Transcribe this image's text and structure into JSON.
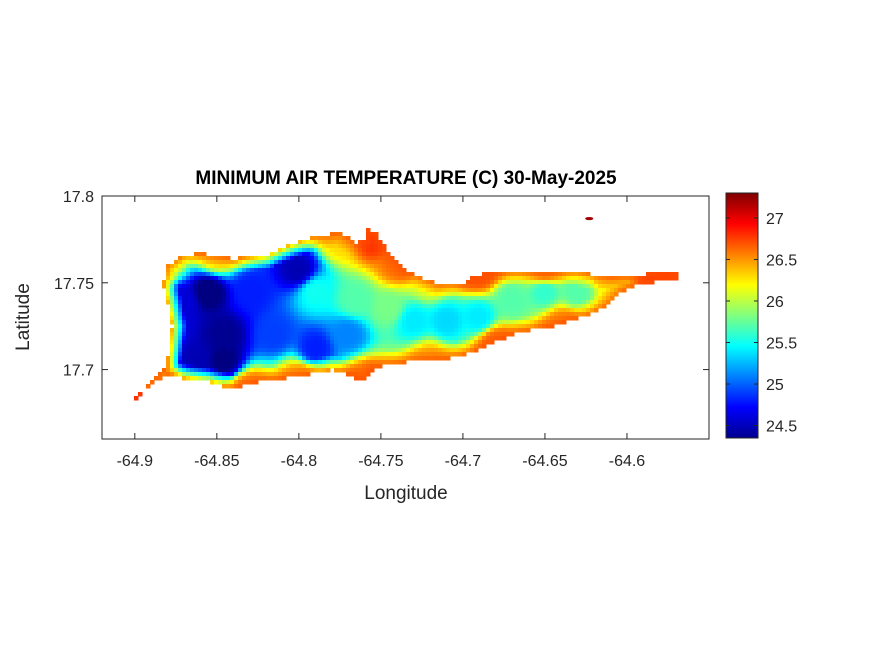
{
  "chart_data": {
    "type": "heatmap",
    "title": "MINIMUM AIR TEMPERATURE (C) 30-May-2025",
    "xlabel": "Longitude",
    "ylabel": "Latitude",
    "xlim": [
      -64.92,
      -64.55
    ],
    "ylim": [
      17.66,
      17.8
    ],
    "xticks": [
      -64.9,
      -64.85,
      -64.8,
      -64.75,
      -64.7,
      -64.65,
      -64.6
    ],
    "xtick_labels": [
      "-64.9",
      "-64.85",
      "-64.8",
      "-64.75",
      "-64.7",
      "-64.65",
      "-64.6"
    ],
    "yticks": [
      17.7,
      17.75,
      17.8
    ],
    "ytick_labels": [
      "17.7",
      "17.75",
      "17.8"
    ],
    "colormap": "jet",
    "colorbar": {
      "range": [
        24.35,
        27.3
      ],
      "ticks": [
        24.5,
        25,
        25.5,
        26,
        26.5,
        27
      ],
      "tick_labels": [
        "24.5",
        "25",
        "25.5",
        "26",
        "26.5",
        "27"
      ]
    },
    "grid": false,
    "island_outline": [
      [
        -64.9,
        17.681
      ],
      [
        -64.895,
        17.688
      ],
      [
        -64.887,
        17.693
      ],
      [
        -64.88,
        17.697
      ],
      [
        -64.87,
        17.695
      ],
      [
        -64.855,
        17.693
      ],
      [
        -64.84,
        17.689
      ],
      [
        -64.825,
        17.693
      ],
      [
        -64.81,
        17.695
      ],
      [
        -64.795,
        17.697
      ],
      [
        -64.78,
        17.7
      ],
      [
        -64.77,
        17.697
      ],
      [
        -64.76,
        17.693
      ],
      [
        -64.755,
        17.7
      ],
      [
        -64.745,
        17.703
      ],
      [
        -64.73,
        17.705
      ],
      [
        -64.71,
        17.706
      ],
      [
        -64.695,
        17.71
      ],
      [
        -64.68,
        17.716
      ],
      [
        -64.665,
        17.722
      ],
      [
        -64.645,
        17.725
      ],
      [
        -64.625,
        17.731
      ],
      [
        -64.612,
        17.737
      ],
      [
        -64.603,
        17.745
      ],
      [
        -64.59,
        17.75
      ],
      [
        -64.575,
        17.751
      ],
      [
        -64.565,
        17.754
      ],
      [
        -64.575,
        17.757
      ],
      [
        -64.59,
        17.755
      ],
      [
        -64.61,
        17.753
      ],
      [
        -64.63,
        17.756
      ],
      [
        -64.66,
        17.757
      ],
      [
        -64.69,
        17.755
      ],
      [
        -64.7,
        17.75
      ],
      [
        -64.715,
        17.749
      ],
      [
        -64.735,
        17.757
      ],
      [
        -64.745,
        17.767
      ],
      [
        -64.752,
        17.778
      ],
      [
        -64.758,
        17.781
      ],
      [
        -64.76,
        17.775
      ],
      [
        -64.765,
        17.773
      ],
      [
        -64.775,
        17.779
      ],
      [
        -64.79,
        17.777
      ],
      [
        -64.805,
        17.772
      ],
      [
        -64.82,
        17.766
      ],
      [
        -64.84,
        17.764
      ],
      [
        -64.858,
        17.767
      ],
      [
        -64.87,
        17.766
      ],
      [
        -64.88,
        17.76
      ],
      [
        -64.883,
        17.75
      ],
      [
        -64.88,
        17.74
      ],
      [
        -64.877,
        17.725
      ],
      [
        -64.879,
        17.712
      ],
      [
        -64.882,
        17.7
      ],
      [
        -64.889,
        17.694
      ],
      [
        -64.897,
        17.686
      ],
      [
        -64.902,
        17.682
      ]
    ],
    "temperature_anchors": [
      {
        "lon": -64.9,
        "lat": 17.681,
        "temp": 27.2
      },
      {
        "lon": -64.888,
        "lat": 17.695,
        "temp": 26.3
      },
      {
        "lon": -64.88,
        "lat": 17.76,
        "temp": 25.9
      },
      {
        "lon": -64.87,
        "lat": 17.74,
        "temp": 24.6
      },
      {
        "lon": -64.855,
        "lat": 17.745,
        "temp": 24.3
      },
      {
        "lon": -64.845,
        "lat": 17.72,
        "temp": 24.4
      },
      {
        "lon": -64.845,
        "lat": 17.705,
        "temp": 24.35
      },
      {
        "lon": -64.862,
        "lat": 17.705,
        "temp": 24.5
      },
      {
        "lon": -64.83,
        "lat": 17.745,
        "temp": 24.8
      },
      {
        "lon": -64.8,
        "lat": 17.757,
        "temp": 24.5
      },
      {
        "lon": -64.815,
        "lat": 17.72,
        "temp": 24.9
      },
      {
        "lon": -64.79,
        "lat": 17.712,
        "temp": 24.8
      },
      {
        "lon": -64.77,
        "lat": 17.72,
        "temp": 25.1
      },
      {
        "lon": -64.79,
        "lat": 17.745,
        "temp": 25.5
      },
      {
        "lon": -64.765,
        "lat": 17.74,
        "temp": 25.7
      },
      {
        "lon": -64.745,
        "lat": 17.735,
        "temp": 25.8
      },
      {
        "lon": -64.73,
        "lat": 17.728,
        "temp": 25.4
      },
      {
        "lon": -64.71,
        "lat": 17.728,
        "temp": 25.35
      },
      {
        "lon": -64.69,
        "lat": 17.73,
        "temp": 25.4
      },
      {
        "lon": -64.67,
        "lat": 17.74,
        "temp": 25.7
      },
      {
        "lon": -64.65,
        "lat": 17.745,
        "temp": 25.6
      },
      {
        "lon": -64.63,
        "lat": 17.745,
        "temp": 25.7
      },
      {
        "lon": -64.61,
        "lat": 17.748,
        "temp": 26.2
      },
      {
        "lon": -64.58,
        "lat": 17.753,
        "temp": 26.8
      },
      {
        "lon": -64.755,
        "lat": 17.775,
        "temp": 26.8
      },
      {
        "lon": -64.775,
        "lat": 17.775,
        "temp": 26.3
      },
      {
        "lon": -64.74,
        "lat": 17.76,
        "temp": 26.6
      },
      {
        "lon": -64.85,
        "lat": 17.765,
        "temp": 26.2
      },
      {
        "lon": -64.83,
        "lat": 17.69,
        "temp": 26.5
      },
      {
        "lon": -64.8,
        "lat": 17.696,
        "temp": 26.4
      },
      {
        "lon": -64.76,
        "lat": 17.695,
        "temp": 26.6
      },
      {
        "lon": -64.72,
        "lat": 17.706,
        "temp": 26.4
      },
      {
        "lon": -64.68,
        "lat": 17.716,
        "temp": 26.6
      },
      {
        "lon": -64.64,
        "lat": 17.727,
        "temp": 26.5
      },
      {
        "lon": -64.69,
        "lat": 17.755,
        "temp": 26.7
      },
      {
        "lon": -64.65,
        "lat": 17.757,
        "temp": 26.5
      },
      {
        "lon": -64.72,
        "lat": 17.75,
        "temp": 26.1
      }
    ],
    "islet": {
      "lon": -64.623,
      "lat": 17.787,
      "temp": 27.2
    }
  }
}
